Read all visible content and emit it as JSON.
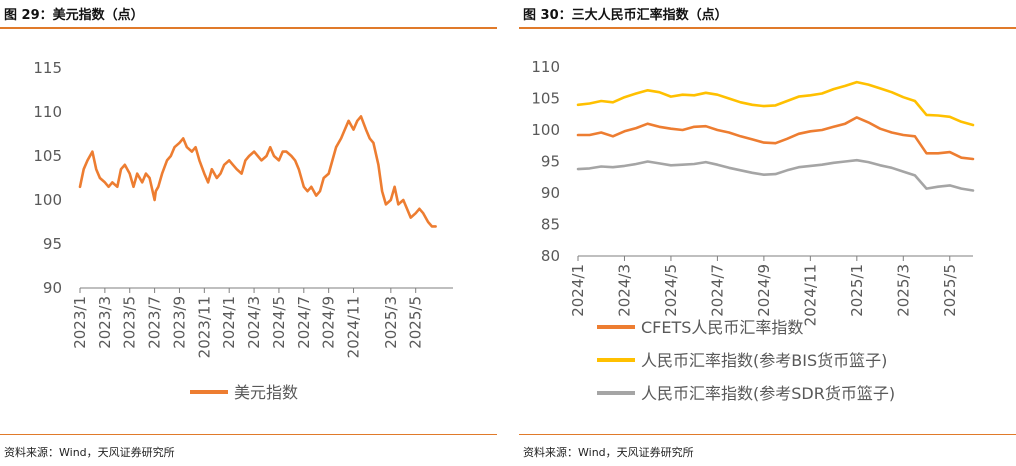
{
  "left": {
    "title": "图 29：美元指数（点）",
    "source": "资料来源：Wind，天风证券研究所"
  },
  "right": {
    "title": "图 30：三大人民币汇率指数（点）",
    "source": "资料来源：Wind，天风证券研究所"
  },
  "colors": {
    "orange": "#ed7d31",
    "gold": "#ffc000",
    "gray": "#a5a5a5",
    "rule": "#e07a2a"
  },
  "chart_data": [
    {
      "type": "line",
      "title": "美元指数（点）",
      "ylim": [
        90,
        115
      ],
      "yticks": [
        90,
        95,
        100,
        105,
        110,
        115
      ],
      "xlim": [
        0,
        30
      ],
      "xticks": [
        "2023/1",
        "2023/3",
        "2023/5",
        "2023/7",
        "2023/9",
        "2023/11",
        "2024/1",
        "2024/3",
        "2024/5",
        "2024/7",
        "2024/9",
        "2024/11",
        "2025/3",
        "2025/5"
      ],
      "xtick_positions": [
        0,
        2,
        4,
        6,
        8,
        10,
        12,
        14,
        16,
        18,
        20,
        22,
        25,
        27
      ],
      "legend": "bottom",
      "series": [
        {
          "name": "美元指数",
          "color": "#ed7d31",
          "x": [
            0,
            0.3,
            0.6,
            1.0,
            1.3,
            1.6,
            2.0,
            2.3,
            2.6,
            3.0,
            3.3,
            3.6,
            4.0,
            4.3,
            4.6,
            5.0,
            5.3,
            5.6,
            6.0,
            6.1,
            6.3,
            6.6,
            7.0,
            7.3,
            7.6,
            8.0,
            8.3,
            8.6,
            9.0,
            9.3,
            9.6,
            10.0,
            10.3,
            10.6,
            11.0,
            11.3,
            11.6,
            12.0,
            12.3,
            12.6,
            13.0,
            13.3,
            13.6,
            14.0,
            14.3,
            14.6,
            15.0,
            15.3,
            15.6,
            16.0,
            16.3,
            16.6,
            17.0,
            17.3,
            17.6,
            18.0,
            18.3,
            18.6,
            19.0,
            19.3,
            19.6,
            20.0,
            20.3,
            20.6,
            21.0,
            21.3,
            21.6,
            22.0,
            22.3,
            22.6,
            23.0,
            23.3,
            23.6,
            24.0,
            24.3,
            24.6,
            25.0,
            25.3,
            25.6,
            26.0,
            26.3,
            26.6,
            27.0,
            27.3,
            27.6,
            28.0,
            28.3,
            28.6
          ],
          "values": [
            101.5,
            103.5,
            104.5,
            105.5,
            103.5,
            102.5,
            102.0,
            101.5,
            102.0,
            101.5,
            103.5,
            104.0,
            103.0,
            101.5,
            103.0,
            102.0,
            103.0,
            102.5,
            100.0,
            101.0,
            101.5,
            103.0,
            104.5,
            105.0,
            106.0,
            106.5,
            107.0,
            106.0,
            105.5,
            106.0,
            104.5,
            103.0,
            102.0,
            103.5,
            102.5,
            103.0,
            104.0,
            104.5,
            104.0,
            103.5,
            103.0,
            104.5,
            105.0,
            105.5,
            105.0,
            104.5,
            105.0,
            106.0,
            105.0,
            104.5,
            105.5,
            105.5,
            105.0,
            104.5,
            103.5,
            101.5,
            101.0,
            101.5,
            100.5,
            101.0,
            102.5,
            103.0,
            104.5,
            106.0,
            107.0,
            108.0,
            109.0,
            108.0,
            109.0,
            109.5,
            108.0,
            107.0,
            106.5,
            104.0,
            101.0,
            99.5,
            100.0,
            101.5,
            99.5,
            100.0,
            99.0,
            98.0,
            98.5,
            99.0,
            98.5,
            97.5,
            97.0,
            97.0
          ]
        }
      ]
    },
    {
      "type": "line",
      "title": "三大人民币汇率指数（点）",
      "ylim": [
        80,
        110
      ],
      "yticks": [
        80,
        85,
        90,
        95,
        100,
        105,
        110
      ],
      "xlim": [
        0,
        17
      ],
      "xticks": [
        "2024/1",
        "2024/3",
        "2024/5",
        "2024/7",
        "2024/9",
        "2024/11",
        "2025/1",
        "2025/3",
        "2025/5"
      ],
      "xtick_positions": [
        0,
        2,
        4,
        6,
        8,
        10,
        12,
        14,
        16
      ],
      "legend": "bottom",
      "series": [
        {
          "name": "CFETS人民币汇率指数",
          "color": "#ed7d31",
          "x": [
            0,
            0.5,
            1,
            1.5,
            2,
            2.5,
            3,
            3.5,
            4,
            4.5,
            5,
            5.5,
            6,
            6.5,
            7,
            7.5,
            8,
            8.5,
            9,
            9.5,
            10,
            10.5,
            11,
            11.5,
            12,
            12.5,
            13,
            13.5,
            14,
            14.5,
            15,
            15.5,
            16,
            16.5,
            17
          ],
          "values": [
            99.2,
            99.2,
            99.6,
            99.0,
            99.8,
            100.3,
            101.0,
            100.5,
            100.2,
            100.0,
            100.5,
            100.6,
            100.0,
            99.6,
            99.0,
            98.5,
            98.0,
            97.9,
            98.6,
            99.4,
            99.8,
            100.0,
            100.5,
            101.0,
            102.0,
            101.2,
            100.2,
            99.6,
            99.2,
            99.0,
            96.3,
            96.3,
            96.5,
            95.6,
            95.4
          ]
        },
        {
          "name": "人民币汇率指数(参考BIS货币篮子)",
          "color": "#ffc000",
          "x": [
            0,
            0.5,
            1,
            1.5,
            2,
            2.5,
            3,
            3.5,
            4,
            4.5,
            5,
            5.5,
            6,
            6.5,
            7,
            7.5,
            8,
            8.5,
            9,
            9.5,
            10,
            10.5,
            11,
            11.5,
            12,
            12.5,
            13,
            13.5,
            14,
            14.5,
            15,
            15.5,
            16,
            16.5,
            17
          ],
          "values": [
            104.0,
            104.2,
            104.6,
            104.4,
            105.2,
            105.8,
            106.3,
            106.0,
            105.3,
            105.6,
            105.5,
            105.9,
            105.6,
            105.0,
            104.4,
            104.0,
            103.8,
            103.9,
            104.6,
            105.3,
            105.5,
            105.8,
            106.5,
            107.0,
            107.6,
            107.2,
            106.6,
            106.0,
            105.2,
            104.6,
            102.4,
            102.3,
            102.1,
            101.3,
            100.8
          ]
        },
        {
          "name": "人民币汇率指数(参考SDR货币篮子)",
          "color": "#a5a5a5",
          "x": [
            0,
            0.5,
            1,
            1.5,
            2,
            2.5,
            3,
            3.5,
            4,
            4.5,
            5,
            5.5,
            6,
            6.5,
            7,
            7.5,
            8,
            8.5,
            9,
            9.5,
            10,
            10.5,
            11,
            11.5,
            12,
            12.5,
            13,
            13.5,
            14,
            14.5,
            15,
            15.5,
            16,
            16.5,
            17
          ],
          "values": [
            93.8,
            93.9,
            94.2,
            94.1,
            94.3,
            94.6,
            95.0,
            94.7,
            94.4,
            94.5,
            94.6,
            94.9,
            94.5,
            94.0,
            93.6,
            93.2,
            92.9,
            93.0,
            93.6,
            94.1,
            94.3,
            94.5,
            94.8,
            95.0,
            95.2,
            94.9,
            94.4,
            94.0,
            93.4,
            92.8,
            90.7,
            91.0,
            91.2,
            90.7,
            90.4
          ]
        }
      ]
    }
  ]
}
